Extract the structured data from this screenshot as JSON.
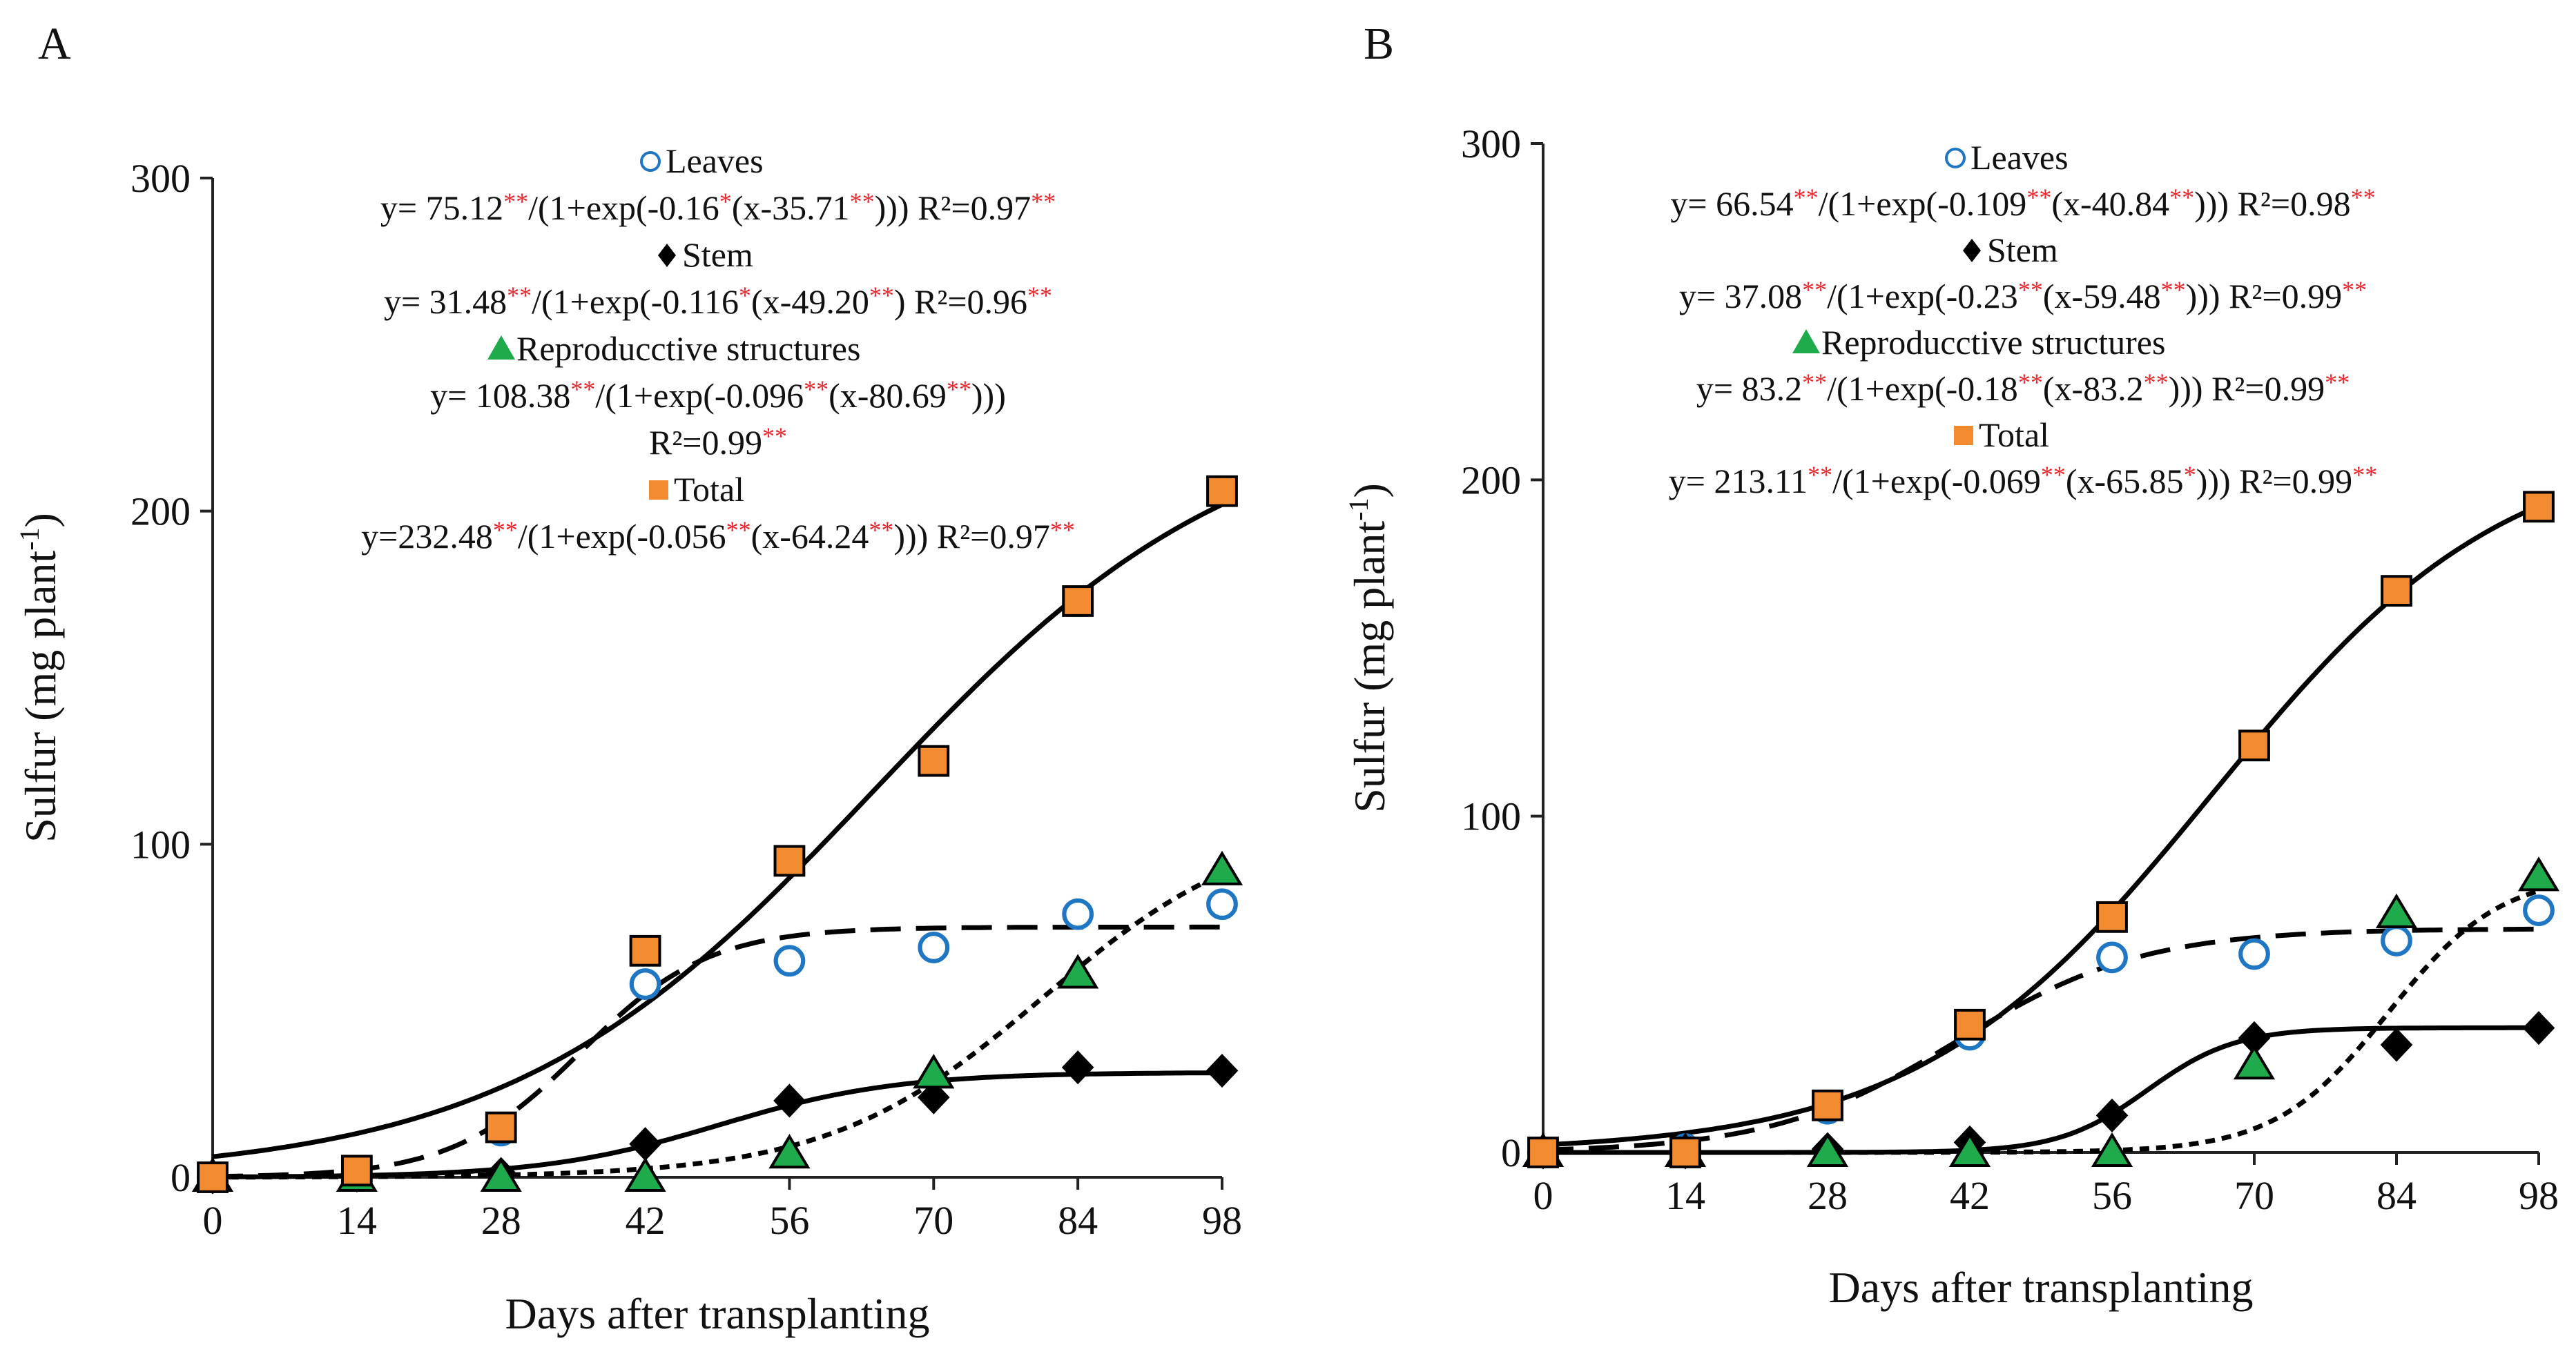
{
  "colors": {
    "leaves": "#1f77c4",
    "stem": "#000000",
    "reproductive": "#1faa4b",
    "total": "#f28a30",
    "significance": "#e8262b"
  },
  "chart_data": [
    {
      "panel": "A",
      "type": "scatter",
      "xlabel": "Days after transplanting",
      "ylabel": "Sulfur (mg plant",
      "ylabel_superscript": "-1",
      "ylabel_close": ")",
      "xlim": [
        0,
        98
      ],
      "ylim": [
        0,
        300
      ],
      "xticks": [
        0,
        14,
        28,
        42,
        56,
        70,
        84,
        98
      ],
      "yticks": [
        0,
        100,
        200,
        300
      ],
      "x": [
        0,
        14,
        28,
        42,
        56,
        70,
        84,
        98
      ],
      "series": [
        {
          "key": "leaves",
          "name": "Leaves",
          "marker": "circle",
          "line": "dash",
          "values": [
            0,
            1,
            14,
            58,
            65,
            69,
            79,
            82
          ],
          "fit": {
            "a": 75.12,
            "b": 0.16,
            "c": 35.71
          }
        },
        {
          "key": "stem",
          "name": "Stem",
          "marker": "diamond",
          "line": "solid",
          "values": [
            0,
            0.5,
            1,
            10,
            23,
            24,
            33,
            32
          ],
          "fit": {
            "a": 31.48,
            "b": 0.116,
            "c": 49.2
          }
        },
        {
          "key": "reproductive",
          "name": "Reproducctive structures",
          "marker": "triangle",
          "line": "dot",
          "values": [
            0,
            0,
            0,
            0,
            7,
            31,
            61,
            92
          ],
          "fit": {
            "a": 108.38,
            "b": 0.096,
            "c": 80.69
          }
        },
        {
          "key": "total",
          "name": "Total",
          "marker": "square",
          "line": "solid",
          "values": [
            0,
            2,
            15,
            68,
            95,
            125,
            173,
            206
          ],
          "fit": {
            "a": 232.48,
            "b": 0.056,
            "c": 64.24
          }
        }
      ],
      "legend": [
        {
          "marker": "circle",
          "name": "Leaves",
          "eq": [
            [
              "y= 75.12",
              "n"
            ],
            [
              "**",
              "s"
            ],
            [
              "/(1+exp(-0.16",
              "n"
            ],
            [
              "*",
              "s"
            ],
            [
              "(x-35.71",
              "n"
            ],
            [
              "**",
              "s"
            ],
            [
              ")))  R²=0.97",
              "n"
            ],
            [
              "**",
              "s"
            ]
          ]
        },
        {
          "marker": "diamond",
          "name": "Stem",
          "eq": [
            [
              "y= 31.48",
              "n"
            ],
            [
              "**",
              "s"
            ],
            [
              "/(1+exp(-0.116",
              "n"
            ],
            [
              "*",
              "s"
            ],
            [
              "(x-49.20",
              "n"
            ],
            [
              "**",
              "s"
            ],
            [
              ")  R²=0.96",
              "n"
            ],
            [
              "**",
              "s"
            ]
          ]
        },
        {
          "marker": "triangle",
          "name": "Reproducctive structures",
          "eq": [
            [
              "y= 108.38",
              "n"
            ],
            [
              "**",
              "s"
            ],
            [
              "/(1+exp(-0.096",
              "n"
            ],
            [
              "**",
              "s"
            ],
            [
              "(x-80.69",
              "n"
            ],
            [
              "**",
              "s"
            ],
            [
              ")))",
              "n"
            ]
          ],
          "eq2": [
            [
              "R²=0.99",
              "n"
            ],
            [
              "**",
              "s"
            ]
          ]
        },
        {
          "marker": "square",
          "name": "Total",
          "eq": [
            [
              "y=232.48",
              "n"
            ],
            [
              "**",
              "s"
            ],
            [
              "/(1+exp(-0.056",
              "n"
            ],
            [
              "**",
              "s"
            ],
            [
              "(x-64.24",
              "n"
            ],
            [
              "**",
              "s"
            ],
            [
              "))) R²=0.97",
              "n"
            ],
            [
              "**",
              "s"
            ]
          ]
        }
      ]
    },
    {
      "panel": "B",
      "type": "scatter",
      "xlabel": "Days after transplanting",
      "ylabel": "Sulfur (mg plant",
      "ylabel_superscript": "-1",
      "ylabel_close": ")",
      "xlim": [
        0,
        98
      ],
      "ylim": [
        0,
        300
      ],
      "xticks": [
        0,
        14,
        28,
        42,
        56,
        70,
        84,
        98
      ],
      "yticks": [
        0,
        100,
        200,
        300
      ],
      "x": [
        0,
        14,
        28,
        42,
        56,
        70,
        84,
        98
      ],
      "series": [
        {
          "key": "leaves",
          "name": "Leaves",
          "marker": "circle",
          "line": "dash",
          "values": [
            0,
            1,
            13,
            35,
            58,
            59,
            63,
            72
          ],
          "fit": {
            "a": 66.54,
            "b": 0.109,
            "c": 40.84
          }
        },
        {
          "key": "stem",
          "name": "Stem",
          "marker": "diamond",
          "line": "solid",
          "values": [
            0,
            0,
            1,
            3,
            11,
            34,
            32,
            37
          ],
          "fit": {
            "a": 37.08,
            "b": 0.23,
            "c": 59.48
          }
        },
        {
          "key": "reproductive",
          "name": "Reproducctive structures",
          "marker": "triangle",
          "line": "dot",
          "values": [
            0,
            0,
            0,
            0,
            0,
            26,
            71,
            82
          ],
          "fit": {
            "a": 83.2,
            "b": 0.18,
            "c": 83.2
          }
        },
        {
          "key": "total",
          "name": "Total",
          "marker": "square",
          "line": "solid",
          "values": [
            0,
            0,
            14,
            38,
            70,
            121,
            167,
            192
          ],
          "fit": {
            "a": 213.11,
            "b": 0.069,
            "c": 65.85
          }
        }
      ],
      "legend": [
        {
          "marker": "circle",
          "name": "Leaves",
          "eq": [
            [
              "y= 66.54",
              "n"
            ],
            [
              "**",
              "s"
            ],
            [
              "/(1+exp(-0.109",
              "n"
            ],
            [
              "**",
              "s"
            ],
            [
              "(x-40.84",
              "n"
            ],
            [
              "**",
              "s"
            ],
            [
              "))) R²=0.98",
              "n"
            ],
            [
              "**",
              "s"
            ]
          ]
        },
        {
          "marker": "diamond",
          "name": "Stem",
          "eq": [
            [
              "y= 37.08",
              "n"
            ],
            [
              "**",
              "s"
            ],
            [
              "/(1+exp(-0.23",
              "n"
            ],
            [
              "**",
              "s"
            ],
            [
              "(x-59.48",
              "n"
            ],
            [
              "**",
              "s"
            ],
            [
              "))) R²=0.99",
              "n"
            ],
            [
              "**",
              "s"
            ]
          ]
        },
        {
          "marker": "triangle",
          "name": "Reproducctive structures",
          "eq": [
            [
              "y= 83.2",
              "n"
            ],
            [
              "**",
              "s"
            ],
            [
              "/(1+exp(-0.18",
              "n"
            ],
            [
              "**",
              "s"
            ],
            [
              "(x-83.2",
              "n"
            ],
            [
              "**",
              "s"
            ],
            [
              "))) R²=0.99",
              "n"
            ],
            [
              "**",
              "s"
            ]
          ]
        },
        {
          "marker": "square",
          "name": "Total",
          "eq": [
            [
              "y= 213.11",
              "n"
            ],
            [
              "**",
              "s"
            ],
            [
              "/(1+exp(-0.069",
              "n"
            ],
            [
              "**",
              "s"
            ],
            [
              "(x-65.85",
              "n"
            ],
            [
              "*",
              "s"
            ],
            [
              "))) R²=0.99",
              "n"
            ],
            [
              "**",
              "s"
            ]
          ]
        }
      ]
    }
  ]
}
